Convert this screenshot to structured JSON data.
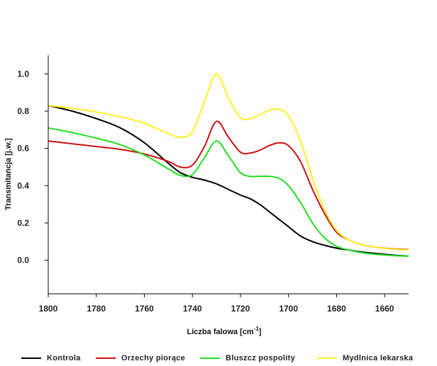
{
  "chart_data": {
    "type": "line",
    "title": "",
    "xlabel": "Liczba falowa [cm",
    "xlabel_sup": "-1",
    "xlabel_end": "]",
    "ylabel": "Transmitancja [j.w.]",
    "xlim": [
      1800,
      1650
    ],
    "ylim": [
      -0.18,
      1.1
    ],
    "x_reversed": true,
    "grid": false,
    "legend_position": "bottom",
    "x_ticks": [
      "1800",
      "1780",
      "1760",
      "1740",
      "1720",
      "1700",
      "1680",
      "1660"
    ],
    "x_tick_values": [
      1800,
      1780,
      1760,
      1740,
      1720,
      1700,
      1680,
      1660
    ],
    "y_ticks": [
      "0.0",
      "0.2",
      "0.4",
      "0.6",
      "0.8",
      "1.0"
    ],
    "y_tick_values": [
      0.0,
      0.2,
      0.4,
      0.6,
      0.8,
      1.0
    ],
    "x": [
      1800,
      1790,
      1780,
      1770,
      1760,
      1750,
      1745,
      1740,
      1735,
      1730,
      1725,
      1720,
      1716,
      1712,
      1708,
      1704,
      1700,
      1695,
      1690,
      1685,
      1680,
      1675,
      1670,
      1665,
      1660,
      1655,
      1650
    ],
    "series": [
      {
        "name": "Kontrola",
        "color": "#000000",
        "values": [
          0.83,
          0.8,
          0.76,
          0.71,
          0.63,
          0.52,
          0.47,
          0.445,
          0.43,
          0.41,
          0.38,
          0.35,
          0.33,
          0.3,
          0.26,
          0.22,
          0.18,
          0.13,
          0.1,
          0.08,
          0.065,
          0.055,
          0.045,
          0.038,
          0.032,
          0.026,
          0.022
        ]
      },
      {
        "name": "Orzechy piorące",
        "color": "#cc1111",
        "values": [
          0.64,
          0.625,
          0.61,
          0.595,
          0.57,
          0.53,
          0.5,
          0.51,
          0.61,
          0.745,
          0.66,
          0.58,
          0.575,
          0.59,
          0.615,
          0.63,
          0.615,
          0.53,
          0.38,
          0.25,
          0.15,
          0.11,
          0.085,
          0.072,
          0.065,
          0.06,
          0.057
        ]
      },
      {
        "name": "Bluszcz pospolity",
        "color": "#22dd22",
        "values": [
          0.71,
          0.685,
          0.655,
          0.62,
          0.565,
          0.49,
          0.455,
          0.46,
          0.55,
          0.64,
          0.56,
          0.47,
          0.45,
          0.45,
          0.45,
          0.44,
          0.4,
          0.31,
          0.2,
          0.12,
          0.075,
          0.055,
          0.042,
          0.033,
          0.028,
          0.024,
          0.022
        ]
      },
      {
        "name": "Mydlnica lekarska",
        "color": "#ffee22",
        "values": [
          0.83,
          0.815,
          0.795,
          0.77,
          0.735,
          0.68,
          0.66,
          0.69,
          0.85,
          1.0,
          0.87,
          0.765,
          0.76,
          0.78,
          0.805,
          0.81,
          0.775,
          0.64,
          0.44,
          0.27,
          0.16,
          0.11,
          0.085,
          0.072,
          0.064,
          0.058,
          0.055
        ]
      }
    ]
  }
}
